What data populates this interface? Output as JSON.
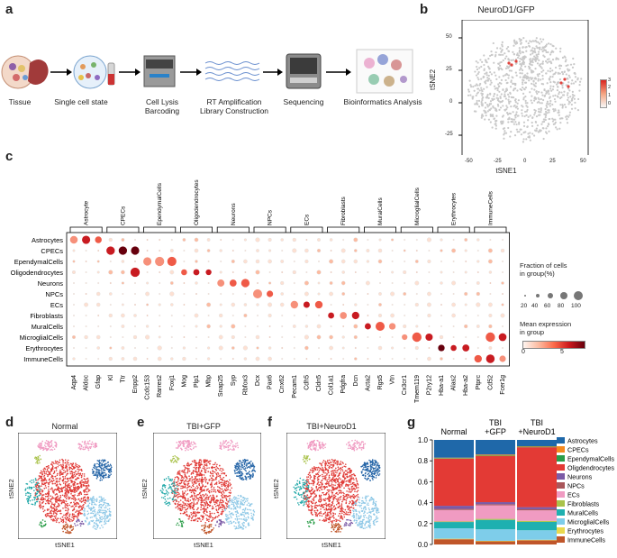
{
  "panels": {
    "a": "a",
    "b": "b",
    "c": "c",
    "d": "d",
    "e": "e",
    "f": "f",
    "g": "g"
  },
  "workflow": {
    "steps": [
      "Tissue",
      "Single cell state",
      "Cell Lysis\nBarcoding",
      "RT Amplification\nLibrary Construction",
      "Sequencing",
      "Bioinformatics Analysis"
    ]
  },
  "panel_b": {
    "title": "NeuroD1/GFP",
    "xlabel": "tSNE1",
    "ylabel": "tSNE2",
    "xticks": [
      "-50",
      "-25",
      "0",
      "25",
      "50"
    ],
    "yticks": [
      "50",
      "25",
      "0",
      "-25"
    ],
    "colorbar_ticks": [
      "3",
      "2",
      "1",
      "0"
    ]
  },
  "panel_c": {
    "groups": [
      "Astrocyte",
      "CPECs",
      "EpendymalCells",
      "Oligodendrocytes",
      "Neurons",
      "NPCs",
      "ECs",
      "Fibroblasts",
      "MuralCells",
      "MicroglialCells",
      "Erythrocytes",
      "ImmuneCells"
    ],
    "genes": [
      "Aqp4",
      "Aldoc",
      "Gfap",
      "Kl",
      "Ttr",
      "Enpp2",
      "Ccdc153",
      "Rarres2",
      "Foxj1",
      "Mog",
      "Plp1",
      "Mbp",
      "Snap25",
      "Syp",
      "Rbfox3",
      "Dcx",
      "Pax6",
      "Cnx62",
      "Pecam1",
      "Cdh5",
      "Cldn5",
      "Col1a1",
      "Pdgfra",
      "Dcn",
      "Acta2",
      "Rgs5",
      "Vtn",
      "Cx3cr1",
      "Tmem119",
      "P2ry12",
      "Hba-a1",
      "Alas2",
      "Hba-a2",
      "Ptprc",
      "Cd52",
      "Fcer1g"
    ],
    "cell_types": [
      "Astrocytes",
      "CPECs",
      "EpendymalCells",
      "Oligodendrocytes",
      "Neurons",
      "NPCs",
      "ECs",
      "Fibroblasts",
      "MuralCells",
      "MicroglialCells",
      "Erythrocytes",
      "ImmuneCells"
    ],
    "size_legend_title": "Fraction of cells\nin group(%)",
    "size_legend_ticks": [
      "20",
      "40",
      "60",
      "80",
      "100"
    ],
    "color_legend_title": "Mean expression\nin group",
    "color_legend_ticks": [
      "0",
      "5"
    ]
  },
  "panel_d": {
    "title": "Normal",
    "xlabel": "tSNE1",
    "ylabel": "tSNE2"
  },
  "panel_e": {
    "title": "TBI+GFP",
    "xlabel": "tSNE1",
    "ylabel": "tSNE2"
  },
  "panel_f": {
    "title": "TBI+NeuroD1",
    "xlabel": "tSNE1",
    "ylabel": "tSNE2"
  },
  "chart_data": {
    "type": "bar",
    "stacked": true,
    "categories": [
      "Normal",
      "TBI\n+GFP",
      "TBI\n+NeuroD1"
    ],
    "yticks": [
      "1.0",
      "0.8",
      "0.6",
      "0.4",
      "0.2",
      "0.0"
    ],
    "ylim": [
      0,
      1
    ],
    "series": [
      {
        "name": "ImmuneCells",
        "color": "#c0562a",
        "values": [
          0.05,
          0.03,
          0.04
        ]
      },
      {
        "name": "Erythrocytes",
        "color": "#ead94e",
        "values": [
          0.005,
          0.005,
          0.005
        ]
      },
      {
        "name": "MicroglialCells",
        "color": "#7ecdea",
        "values": [
          0.1,
          0.11,
          0.09
        ]
      },
      {
        "name": "MuralCells",
        "color": "#1eb0b0",
        "values": [
          0.06,
          0.09,
          0.08
        ]
      },
      {
        "name": "Fibroblasts",
        "color": "#a9c24a",
        "values": [
          0.005,
          0.01,
          0.01
        ]
      },
      {
        "name": "ECs",
        "color": "#f09bc2",
        "values": [
          0.11,
          0.13,
          0.1
        ]
      },
      {
        "name": "NPCs",
        "color": "#a9565a",
        "values": [
          0.01,
          0.01,
          0.01
        ]
      },
      {
        "name": "Neurons",
        "color": "#7b5aa6",
        "values": [
          0.03,
          0.02,
          0.02
        ]
      },
      {
        "name": "Oligdendrocytes",
        "color": "#e33a35",
        "values": [
          0.45,
          0.44,
          0.57
        ]
      },
      {
        "name": "EpendymalCells",
        "color": "#2a9d48",
        "values": [
          0.005,
          0.005,
          0.005
        ]
      },
      {
        "name": "CPECs",
        "color": "#f5891f",
        "values": [
          0.005,
          0.01,
          0.005
        ]
      },
      {
        "name": "Astrocytes",
        "color": "#1f68a9",
        "values": [
          0.17,
          0.14,
          0.06
        ]
      }
    ],
    "legend": [
      "Astrocytes",
      "CPECs",
      "EpendymalCells",
      "Oligdendrocytes",
      "Neurons",
      "NPCs",
      "ECs",
      "Fibroblasts",
      "MuralCells",
      "MicroglialCells",
      "Erythrocytes",
      "ImmuneCells"
    ]
  }
}
